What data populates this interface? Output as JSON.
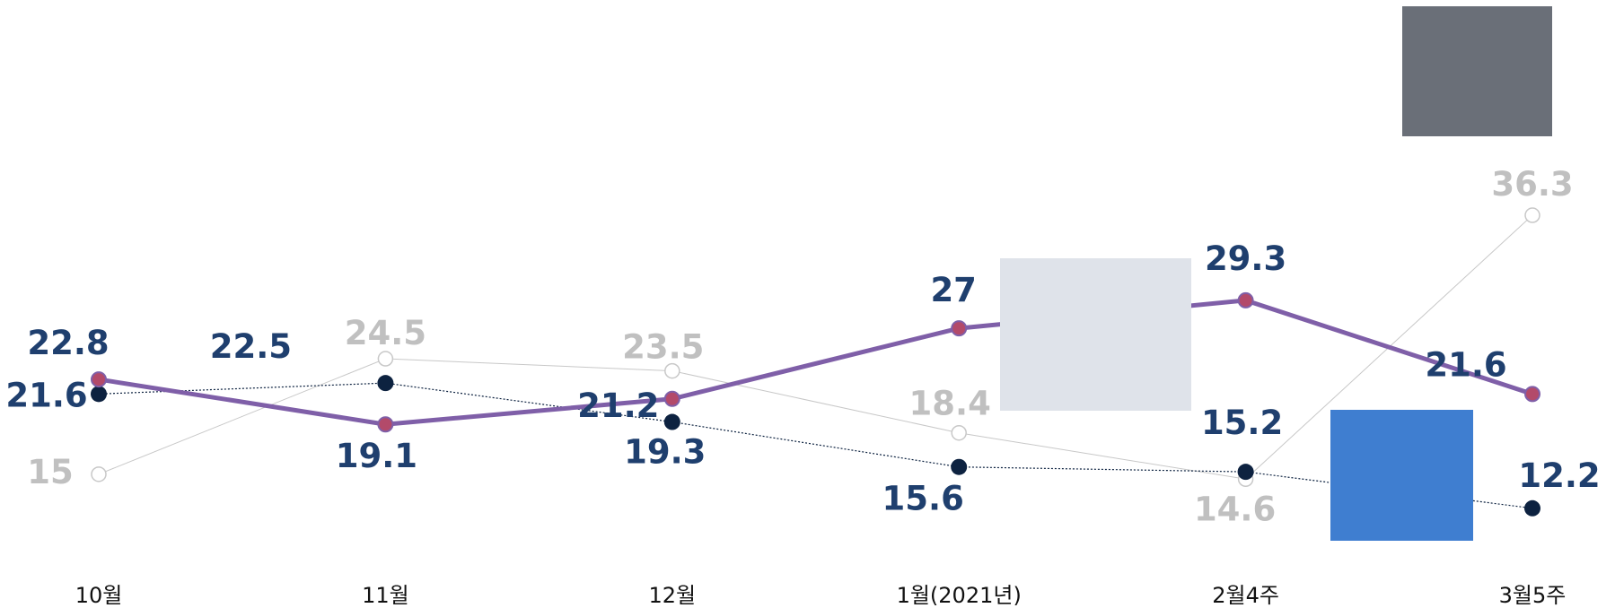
{
  "chart_data": {
    "type": "line",
    "categories": [
      "10월",
      "11월",
      "12월",
      "1월(2021년)",
      "2월4주",
      "3월5주"
    ],
    "series": [
      {
        "color": "#7f5fa8",
        "values": [
          22.8,
          19.1,
          21.2,
          27,
          29.3,
          21.6
        ]
      },
      {
        "color": "#0d2240",
        "values": [
          21.6,
          22.5,
          19.3,
          15.6,
          15.2,
          12.2
        ]
      },
      {
        "color": "#c8c8c8",
        "values": [
          15,
          24.5,
          23.5,
          18.4,
          14.6,
          36.3
        ]
      }
    ],
    "ylim": [
      4,
      54
    ]
  }
}
